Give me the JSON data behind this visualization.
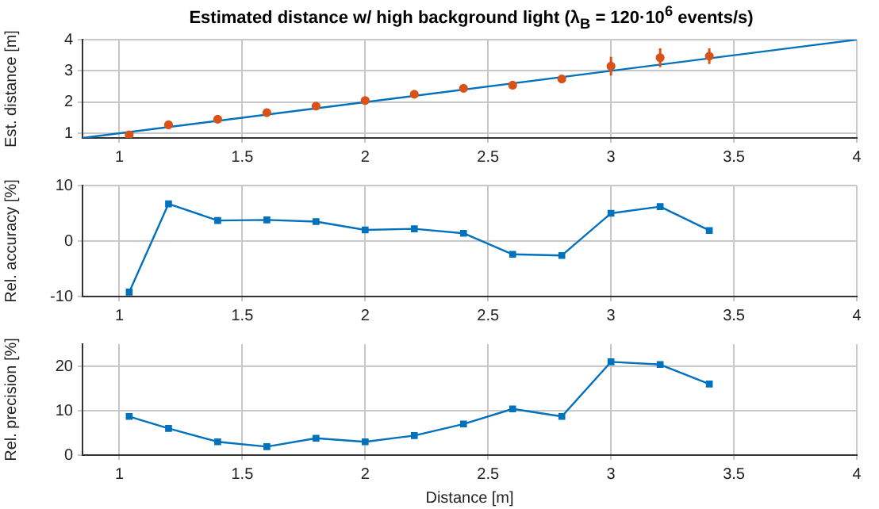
{
  "chart_data": [
    {
      "type": "scatter",
      "title": "Estimated distance w/ high background light (λ$_{B}$ = 120·10$^{6}$ events/s)",
      "ylabel": "Est. distance [m]",
      "xlim": [
        0.85,
        4
      ],
      "xticks": [
        1,
        1.5,
        2,
        2.5,
        3,
        3.5,
        4
      ],
      "ylim": [
        0.85,
        4
      ],
      "yticks": [
        1,
        2,
        3,
        4
      ],
      "grid": true,
      "series": [
        {
          "type": "line",
          "color": "#0072bd",
          "marker": "none",
          "x": [
            0.85,
            4
          ],
          "values": [
            0.85,
            4
          ]
        },
        {
          "type": "scatter",
          "color": "#d95319",
          "marker": "circle",
          "x": [
            1.04,
            1.2,
            1.4,
            1.6,
            1.8,
            2.0,
            2.2,
            2.4,
            2.6,
            2.8,
            3.0,
            3.2,
            3.4
          ],
          "values": [
            0.95,
            1.27,
            1.45,
            1.66,
            1.87,
            2.05,
            2.25,
            2.44,
            2.54,
            2.74,
            3.15,
            3.42,
            3.47
          ],
          "errors": [
            0.03,
            0.04,
            0.04,
            0.04,
            0.05,
            0.04,
            0.05,
            0.06,
            0.1,
            0.1,
            0.3,
            0.3,
            0.25
          ]
        }
      ]
    },
    {
      "type": "line",
      "ylabel": "Rel. accuracy [%]",
      "marker": "square",
      "x": [
        1.04,
        1.2,
        1.4,
        1.6,
        1.8,
        2.0,
        2.2,
        2.4,
        2.6,
        2.8,
        3.0,
        3.2,
        3.4
      ],
      "xlim": [
        0.85,
        4
      ],
      "xticks": [
        1,
        1.5,
        2,
        2.5,
        3,
        3.5,
        4
      ],
      "ylim": [
        -10,
        10
      ],
      "yticks": [
        -10,
        0,
        10
      ],
      "grid": true,
      "series": [
        {
          "color": "#0072bd",
          "values": [
            -9.2,
            6.7,
            3.7,
            3.8,
            3.5,
            2.0,
            2.2,
            1.4,
            -2.4,
            -2.6,
            5.0,
            6.2,
            1.9
          ]
        }
      ]
    },
    {
      "type": "line",
      "ylabel": "Rel. precision [%]",
      "xlabel": "Distance [m]",
      "marker": "square",
      "x": [
        1.04,
        1.2,
        1.4,
        1.6,
        1.8,
        2.0,
        2.2,
        2.4,
        2.6,
        2.8,
        3.0,
        3.2,
        3.4
      ],
      "xlim": [
        0.85,
        4
      ],
      "xticks": [
        1,
        1.5,
        2,
        2.5,
        3,
        3.5,
        4
      ],
      "ylim": [
        0,
        25
      ],
      "yticks": [
        0,
        10,
        20
      ],
      "grid": true,
      "series": [
        {
          "color": "#0072bd",
          "values": [
            8.7,
            6.0,
            3.0,
            1.9,
            3.8,
            3.0,
            4.4,
            7.0,
            10.4,
            8.7,
            21.0,
            20.4,
            16.0
          ]
        }
      ]
    }
  ]
}
